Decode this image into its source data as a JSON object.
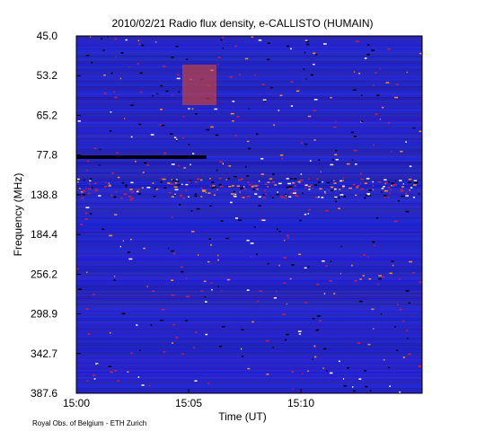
{
  "chart_data": {
    "type": "heatmap",
    "title": "2010/02/21  Radio flux density, e-CALLISTO (HUMAIN)",
    "xlabel": "Time (UT)",
    "ylabel": "Frequency (MHz)",
    "xticks": [
      "15:00",
      "15:05",
      "15:10"
    ],
    "yticks": [
      {
        "value": 45,
        "label": "45.0"
      },
      {
        "value": 53.2,
        "label": "53.2"
      },
      {
        "value": 65.2,
        "label": "65.2"
      },
      {
        "value": 77.8,
        "label": "77.8"
      },
      {
        "value": 138.8,
        "label": "138.8"
      },
      {
        "value": 184.4,
        "label": "184.4"
      },
      {
        "value": 256.2,
        "label": "256.2"
      },
      {
        "value": 298.9,
        "label": "298.9"
      },
      {
        "value": 342.7,
        "label": "342.7"
      },
      {
        "value": 387.6,
        "label": "387.6"
      }
    ],
    "credit": "Royal Obs. of Belgium - ETH Zurich"
  }
}
